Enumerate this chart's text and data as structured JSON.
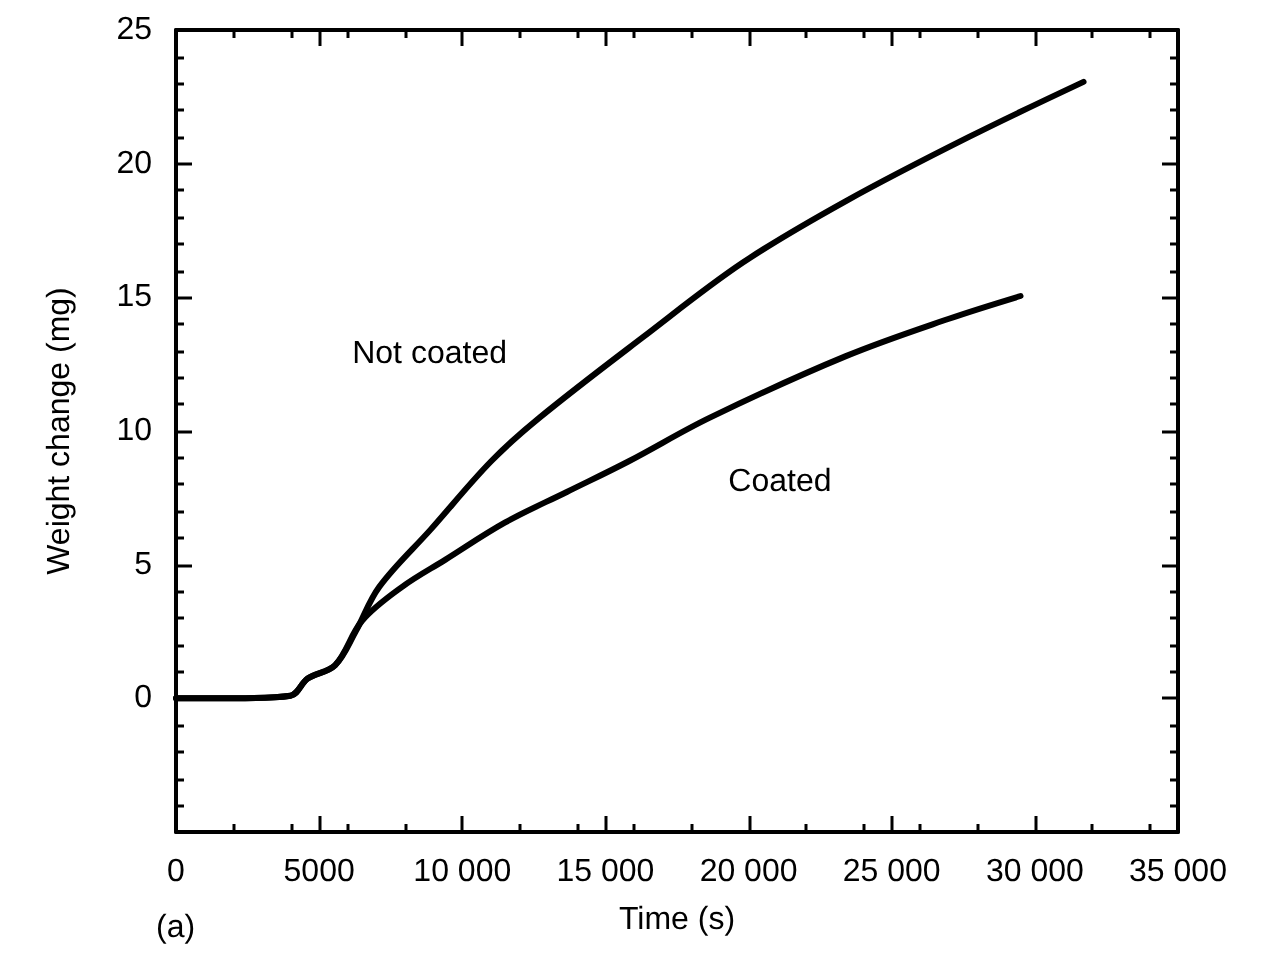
{
  "chart_data": {
    "type": "line",
    "xlabel": "Time (s)",
    "ylabel": "Weight change (mg)",
    "xlim": [
      0,
      35000
    ],
    "xticks": [
      0,
      5000,
      {
        "value": 10000,
        "label": "10 000"
      },
      {
        "value": 15000,
        "label": "15 000"
      },
      {
        "value": 20000,
        "label": "20 000"
      },
      {
        "value": 25000,
        "label": "25 000"
      },
      {
        "value": 30000,
        "label": "30 000"
      },
      {
        "value": 35000,
        "label": "35 000"
      }
    ],
    "ylim": [
      -5,
      25
    ],
    "yticks": [
      {
        "value": -5,
        "label": null
      },
      0,
      5,
      10,
      15,
      20,
      25
    ],
    "grid": false,
    "marker": "none",
    "line_style": "solid",
    "series": [
      {
        "name": "Not coated",
        "color": "#000000",
        "x": [
          0,
          2000,
          4000,
          4600,
          5560,
          6280,
          7100,
          8900,
          11000,
          12700,
          16300,
          19800,
          23400,
          27700,
          31700
        ],
        "values": [
          0,
          0,
          0.1,
          0.74,
          1.24,
          2.51,
          4.17,
          6.32,
          8.86,
          10.5,
          13.5,
          16.3,
          18.6,
          21.0,
          23.06
        ]
      },
      {
        "name": "Coated",
        "color": "#000000",
        "x": [
          0,
          2000,
          4000,
          4600,
          5560,
          6500,
          7900,
          9400,
          11500,
          13650,
          15800,
          18650,
          23400,
          27000,
          29500
        ],
        "values": [
          0,
          0,
          0.1,
          0.74,
          1.24,
          2.9,
          4.17,
          5.18,
          6.58,
          7.72,
          8.86,
          10.5,
          12.8,
          14.2,
          15.05
        ]
      }
    ],
    "annotations": [
      "(a)"
    ]
  }
}
